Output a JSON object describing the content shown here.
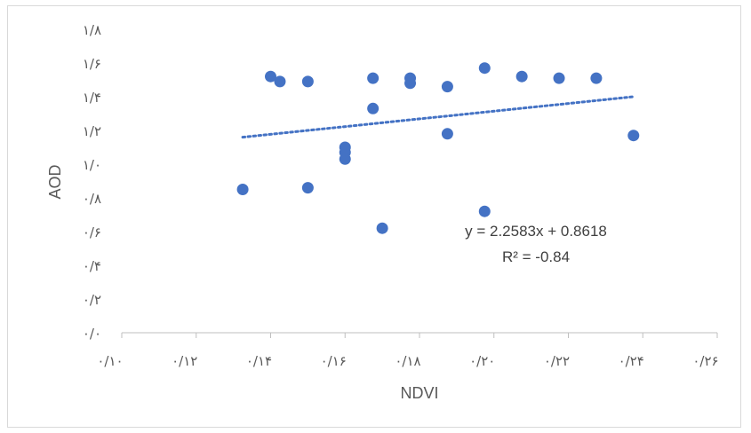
{
  "chart_data": {
    "type": "scatter",
    "xlabel": "NDVI",
    "ylabel": "AOD",
    "xlim": [
      0.1,
      0.26
    ],
    "ylim": [
      0.0,
      1.8
    ],
    "x_ticks": [
      0.1,
      0.12,
      0.14,
      0.16,
      0.18,
      0.2,
      0.22,
      0.24,
      0.26
    ],
    "y_ticks": [
      0.0,
      0.2,
      0.4,
      0.6,
      0.8,
      1.0,
      1.2,
      1.4,
      1.6,
      1.8
    ],
    "x_tick_labels": [
      "٠/١٠",
      "٠/١٢",
      "٠/١۴",
      "٠/١۶",
      "٠/١٨",
      "٠/٢٠",
      "٠/٢٢",
      "٠/٢۴",
      "٠/٢۶"
    ],
    "y_tick_labels": [
      "٠/٠",
      "٠/٢",
      "٠/۴",
      "٠/۶",
      "٠/٨",
      "١/٠",
      "١/٢",
      "١/۴",
      "١/۶",
      "١/٨"
    ],
    "grid": false,
    "series": [
      {
        "color": "#4472c4",
        "points": [
          {
            "x": 0.1325,
            "y": 0.85
          },
          {
            "x": 0.14,
            "y": 1.52
          },
          {
            "x": 0.1425,
            "y": 1.49
          },
          {
            "x": 0.15,
            "y": 1.49
          },
          {
            "x": 0.15,
            "y": 0.86
          },
          {
            "x": 0.16,
            "y": 1.1
          },
          {
            "x": 0.16,
            "y": 1.07
          },
          {
            "x": 0.16,
            "y": 1.03
          },
          {
            "x": 0.1675,
            "y": 1.51
          },
          {
            "x": 0.1675,
            "y": 1.33
          },
          {
            "x": 0.17,
            "y": 0.62
          },
          {
            "x": 0.1775,
            "y": 1.51
          },
          {
            "x": 0.1775,
            "y": 1.48
          },
          {
            "x": 0.1875,
            "y": 1.46
          },
          {
            "x": 0.1875,
            "y": 1.18
          },
          {
            "x": 0.1975,
            "y": 1.57
          },
          {
            "x": 0.1975,
            "y": 0.72
          },
          {
            "x": 0.2075,
            "y": 1.52
          },
          {
            "x": 0.2175,
            "y": 1.51
          },
          {
            "x": 0.2275,
            "y": 1.51
          },
          {
            "x": 0.2375,
            "y": 1.17
          }
        ]
      }
    ],
    "trendline": {
      "type": "linear",
      "color": "#4472c4",
      "from": {
        "x": 0.1325,
        "y": 1.16
      },
      "to": {
        "x": 0.2375,
        "y": 1.4
      },
      "equation": "y = 2.2583x + 0.8618",
      "r_squared": "R² = -0.84"
    }
  }
}
